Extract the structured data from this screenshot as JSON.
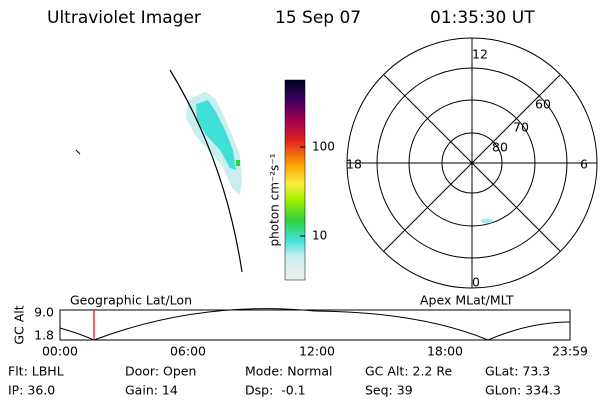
{
  "header": {
    "title": "Ultraviolet Imager",
    "date": "15 Sep 07",
    "time": "01:35:30 UT"
  },
  "colorbar": {
    "label": "photon cm⁻²s⁻¹",
    "ticks": [
      "100",
      "10"
    ]
  },
  "polar": {
    "labels": [
      "12",
      "6",
      "0",
      "18",
      "60",
      "70",
      "80"
    ]
  },
  "timeline": {
    "left_title": "Geographic Lat/Lon",
    "right_title": "Apex MLat/MLT",
    "axis_label": "GC Alt",
    "y_labels": [
      "9.0",
      "1.8"
    ],
    "x_labels": [
      "00:00",
      "06:00",
      "12:00",
      "18:00",
      "23:59"
    ]
  },
  "status": {
    "rows": [
      [
        "Flt: LBHL",
        "Door: Open",
        "Mode: Normal",
        "GC Alt: 2.2 Re",
        "GLat: 73.3"
      ],
      [
        "IP: 36.0",
        "Gain: 14",
        "Dsp:  -0.1",
        "Seq: 39",
        "GLon: 334.3"
      ]
    ]
  }
}
